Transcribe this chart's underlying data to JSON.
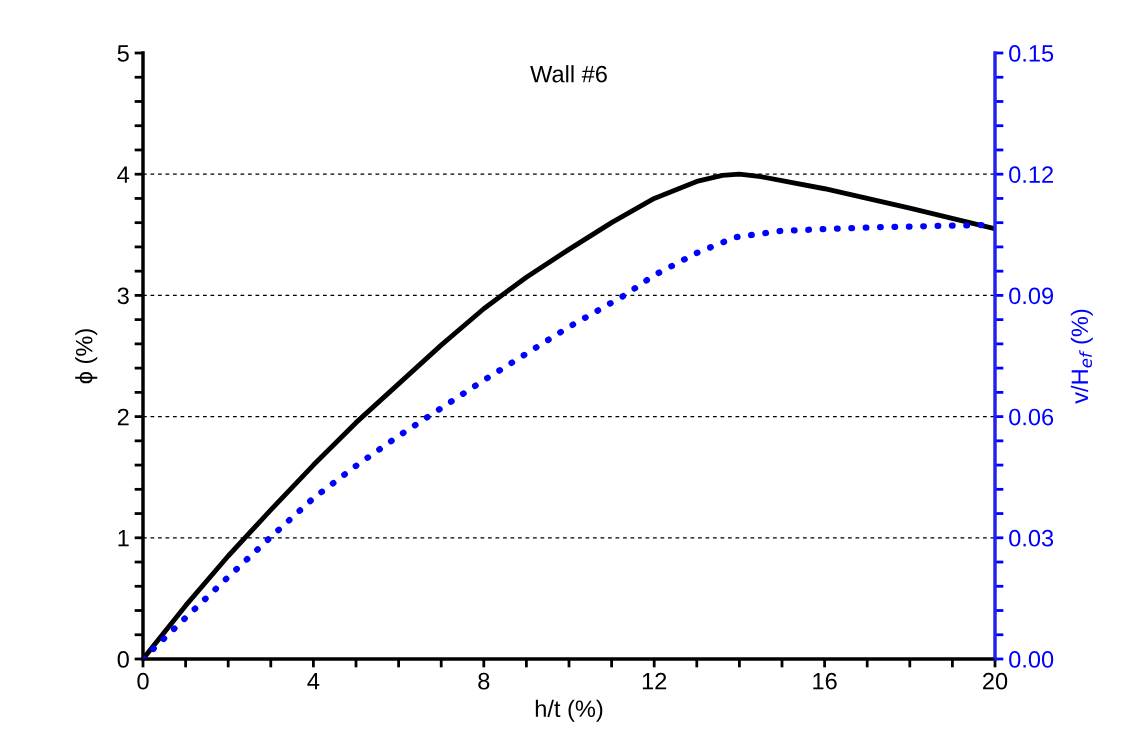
{
  "chart_data": {
    "type": "line",
    "title": "Wall #6",
    "xlabel": "h/t (%)",
    "ylabel": "ϕ (%)",
    "y2label": "v/H$_{ef}$ (%)",
    "xlim": [
      0,
      20
    ],
    "ylim": [
      0,
      5
    ],
    "y2lim": [
      0,
      0.15
    ],
    "xticks": [
      0,
      {
        "value": 1,
        "label": null
      },
      {
        "value": 2,
        "label": null
      },
      {
        "value": 3,
        "label": null
      },
      4,
      {
        "value": 5,
        "label": null
      },
      {
        "value": 6,
        "label": null
      },
      {
        "value": 7,
        "label": null
      },
      8,
      {
        "value": 9,
        "label": null
      },
      {
        "value": 10,
        "label": null
      },
      {
        "value": 11,
        "label": null
      },
      12,
      {
        "value": 13,
        "label": null
      },
      {
        "value": 14,
        "label": null
      },
      {
        "value": 15,
        "label": null
      },
      16,
      {
        "value": 17,
        "label": null
      },
      {
        "value": 18,
        "label": null
      },
      {
        "value": 19,
        "label": null
      },
      20
    ],
    "yticks": [
      0,
      {
        "value": 0.2,
        "label": null
      },
      {
        "value": 0.4,
        "label": null
      },
      {
        "value": 0.6,
        "label": null
      },
      {
        "value": 0.8,
        "label": null
      },
      1,
      {
        "value": 1.2,
        "label": null
      },
      {
        "value": 1.4,
        "label": null
      },
      {
        "value": 1.6,
        "label": null
      },
      {
        "value": 1.8,
        "label": null
      },
      2,
      {
        "value": 2.2,
        "label": null
      },
      {
        "value": 2.4,
        "label": null
      },
      {
        "value": 2.6,
        "label": null
      },
      {
        "value": 2.8,
        "label": null
      },
      3,
      {
        "value": 3.2,
        "label": null
      },
      {
        "value": 3.4,
        "label": null
      },
      {
        "value": 3.6,
        "label": null
      },
      {
        "value": 3.8,
        "label": null
      },
      4,
      {
        "value": 4.2,
        "label": null
      },
      {
        "value": 4.4,
        "label": null
      },
      {
        "value": 4.6,
        "label": null
      },
      {
        "value": 4.8,
        "label": null
      },
      5
    ],
    "y2ticks": [
      {
        "value": 0,
        "label": "0.00"
      },
      {
        "value": 0.006,
        "label": null
      },
      {
        "value": 0.012,
        "label": null
      },
      {
        "value": 0.018,
        "label": null
      },
      {
        "value": 0.024,
        "label": null
      },
      {
        "value": 0.03,
        "label": "0.03"
      },
      {
        "value": 0.036,
        "label": null
      },
      {
        "value": 0.042,
        "label": null
      },
      {
        "value": 0.048,
        "label": null
      },
      {
        "value": 0.054,
        "label": null
      },
      {
        "value": 0.06,
        "label": "0.06"
      },
      {
        "value": 0.066,
        "label": null
      },
      {
        "value": 0.072,
        "label": null
      },
      {
        "value": 0.078,
        "label": null
      },
      {
        "value": 0.084,
        "label": null
      },
      {
        "value": 0.09,
        "label": "0.09"
      },
      {
        "value": 0.096,
        "label": null
      },
      {
        "value": 0.102,
        "label": null
      },
      {
        "value": 0.108,
        "label": null
      },
      {
        "value": 0.114,
        "label": null
      },
      {
        "value": 0.12,
        "label": "0.12"
      },
      {
        "value": 0.126,
        "label": null
      },
      {
        "value": 0.132,
        "label": null
      },
      {
        "value": 0.138,
        "label": null
      },
      {
        "value": 0.144,
        "label": null
      },
      {
        "value": 0.15,
        "label": "0.15"
      }
    ],
    "grid": "y",
    "series": [
      {
        "color": "#000000",
        "line_style": "solid",
        "x": [
          0,
          1,
          2,
          3,
          4,
          5,
          6,
          7,
          8,
          9,
          10,
          11,
          12,
          13,
          13.6,
          14,
          14.5,
          16,
          18,
          20
        ],
        "values": [
          0,
          0.44,
          0.85,
          1.23,
          1.6,
          1.95,
          2.27,
          2.59,
          2.89,
          3.15,
          3.38,
          3.6,
          3.8,
          3.94,
          3.99,
          4.0,
          3.98,
          3.88,
          3.72,
          3.55
        ]
      },
      {
        "color": "#0000ff",
        "line_style": "dotted",
        "axis": "y2",
        "x": [
          0,
          1,
          2,
          3,
          4,
          5,
          6,
          8,
          10,
          11.3,
          12,
          13,
          13.9,
          15,
          17,
          20
        ],
        "values": [
          0,
          0.0102,
          0.0203,
          0.0302,
          0.0398,
          0.0478,
          0.0552,
          0.069,
          0.0822,
          0.09,
          0.095,
          0.1005,
          0.1044,
          0.106,
          0.1068,
          0.1075
        ]
      }
    ]
  }
}
